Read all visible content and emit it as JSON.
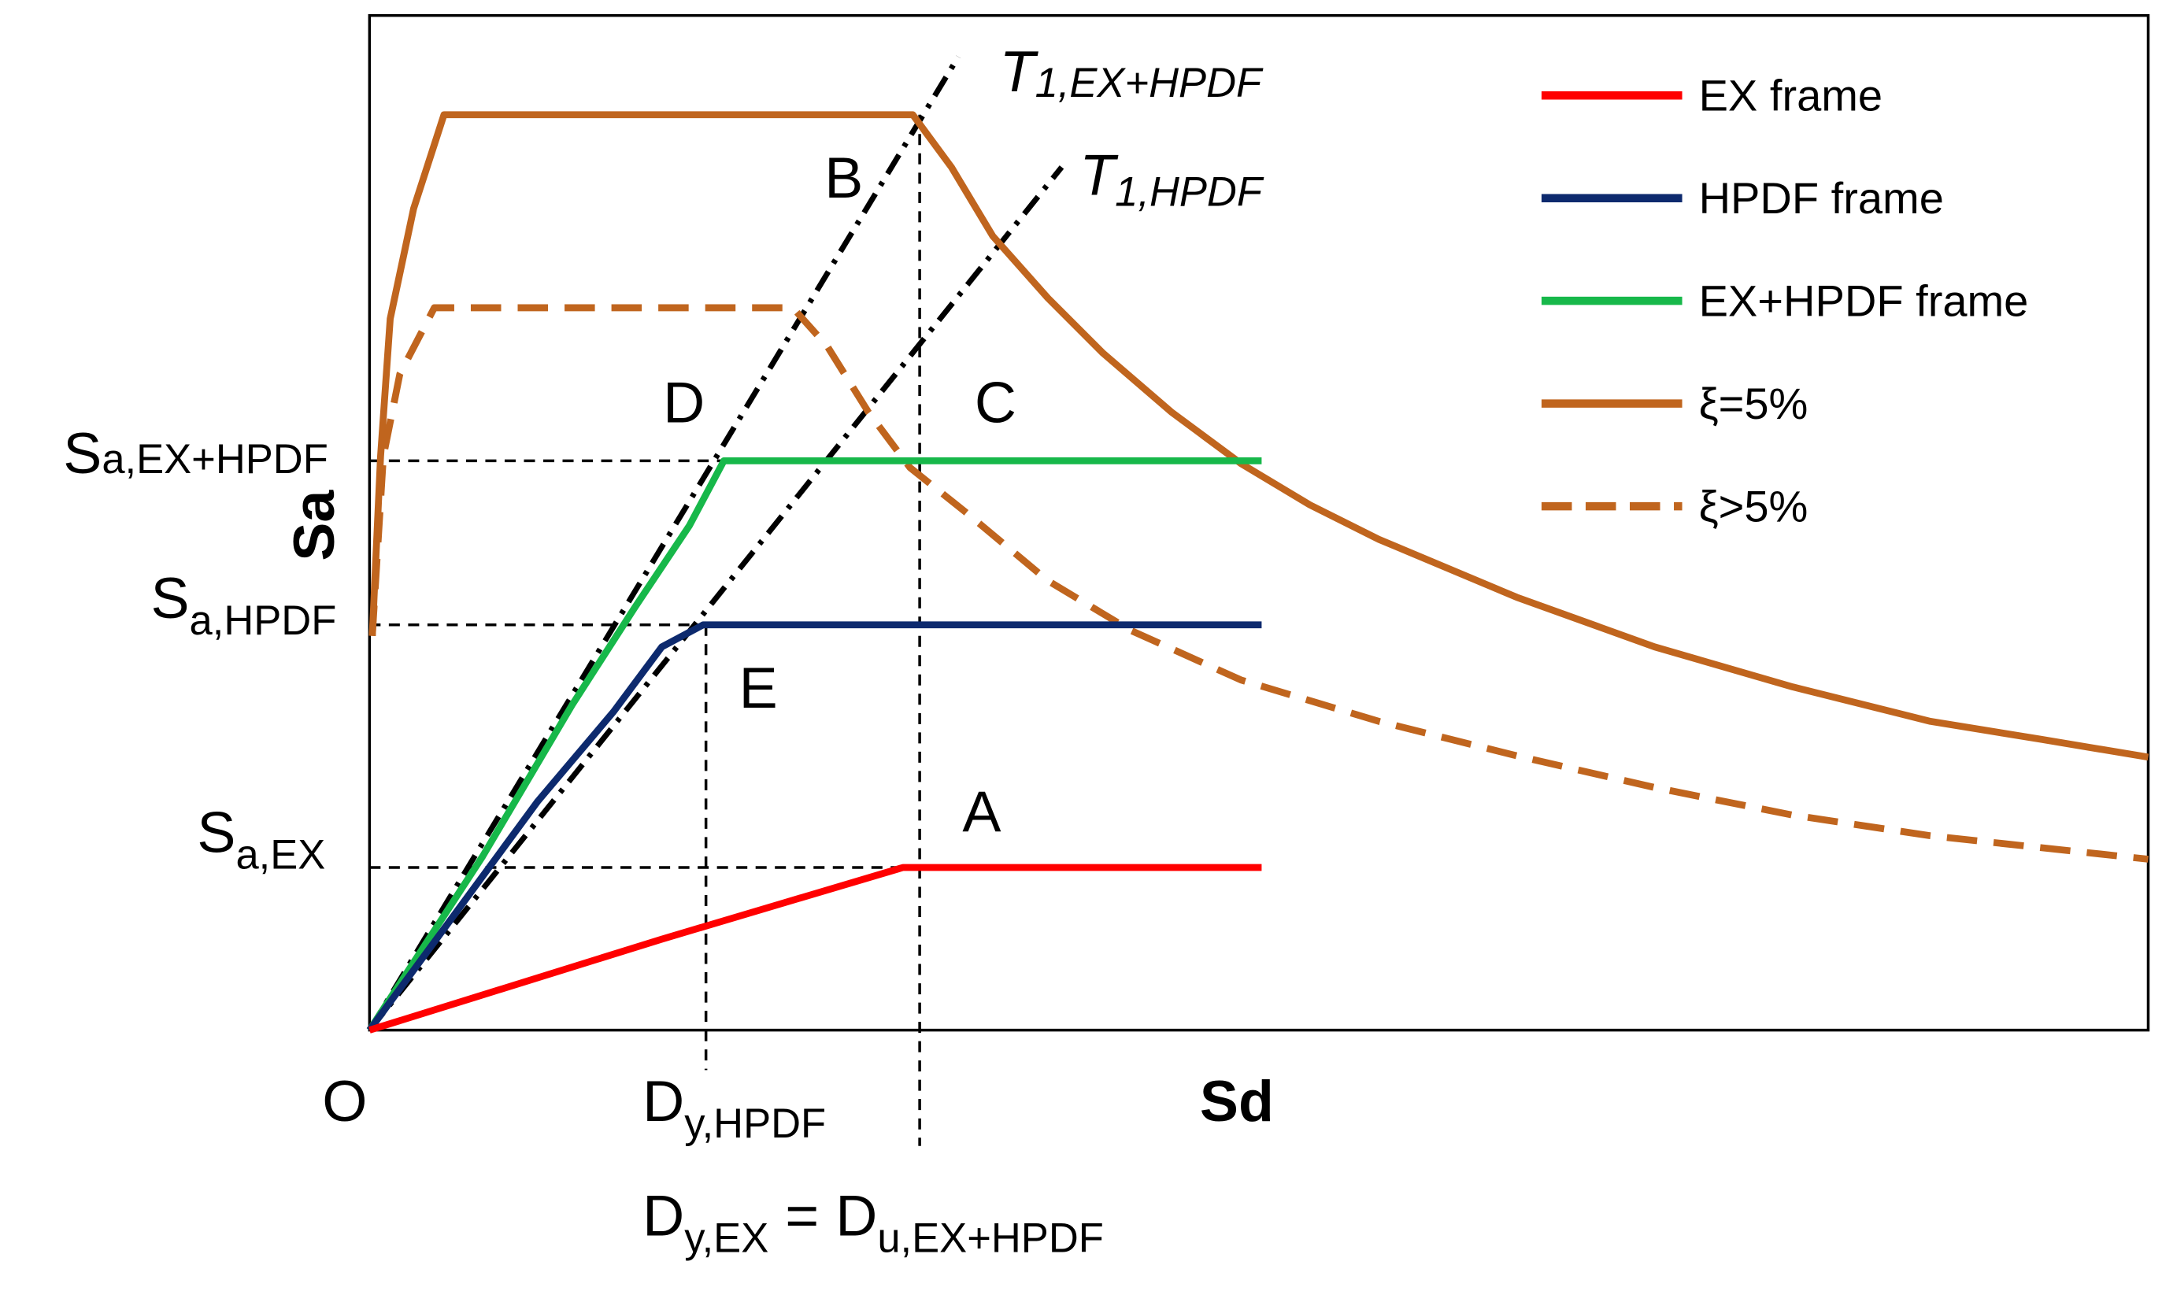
{
  "axes": {
    "x_label": "Sd",
    "y_label": "Sa",
    "origin": "O"
  },
  "y_annotations": [
    {
      "main": "S",
      "sub": "a,EX+HPDF"
    },
    {
      "main": "S",
      "sub": "a,HPDF"
    },
    {
      "main": "S",
      "sub": "a,EX"
    }
  ],
  "x_annotations": {
    "dy_hpdf": {
      "main": "D",
      "sub": "y,HPDF"
    },
    "equation": {
      "left_main": "D",
      "left_sub": "y,EX",
      "equals": "=",
      "right_main": "D",
      "right_sub": "u,EX+HPDF"
    }
  },
  "points": [
    "A",
    "B",
    "C",
    "D",
    "E"
  ],
  "periods": [
    {
      "main": "T",
      "sub": "1,EX+HPDF"
    },
    {
      "main": "T",
      "sub": "1,HPDF"
    }
  ],
  "legend": [
    {
      "label": "EX frame",
      "color": "#ff0000",
      "dashed": false
    },
    {
      "label": "HPDF frame",
      "color": "#0d2a6e",
      "dashed": false
    },
    {
      "label": "EX+HPDF frame",
      "color": "#17b84a",
      "dashed": false
    },
    {
      "label": "ξ=5%",
      "color": "#c0651e",
      "dashed": false
    },
    {
      "label": "ξ>5%",
      "color": "#c0651e",
      "dashed": true
    }
  ]
}
